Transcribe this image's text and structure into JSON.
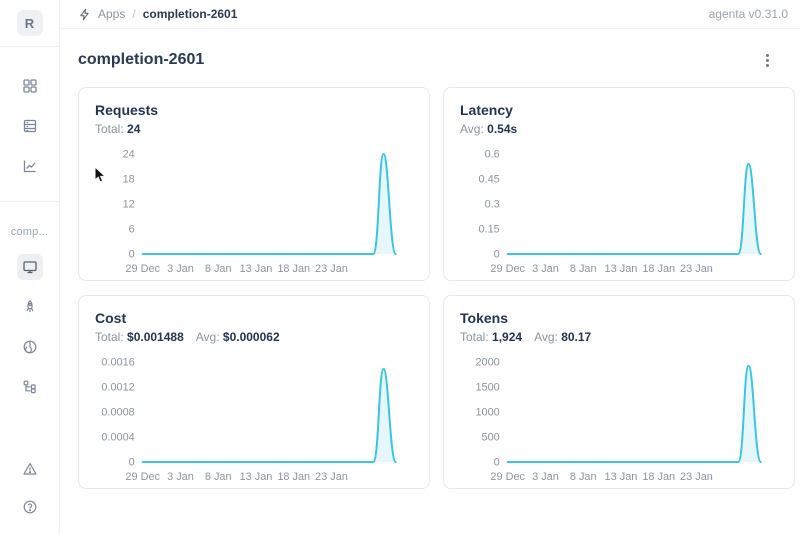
{
  "header": {
    "breadcrumb": {
      "app": "Apps",
      "separator": "/",
      "current": "completion-2601"
    },
    "version": "agenta v0.31.0"
  },
  "sidebar": {
    "workspace_initial": "R",
    "app_label": "comp..."
  },
  "page": {
    "title": "completion-2601"
  },
  "theme": {
    "accent": "#3bc5df",
    "accent_fill": "rgba(59,197,223,0.13)",
    "text_dark": "#25344f",
    "text_gray": "#8b95a1",
    "card_border": "#e8e9eb"
  },
  "chart_data": [
    {
      "type": "area",
      "title": "Requests",
      "stats": [
        {
          "label": "Total:",
          "value": "24"
        }
      ],
      "x_labels": [
        "29 Dec",
        "3 Jan",
        "8 Jan",
        "13 Jan",
        "18 Jan",
        "23 Jan"
      ],
      "y_ticks": [
        "0",
        "6",
        "12",
        "18",
        "24"
      ],
      "y_max": 24,
      "peak_value": 24,
      "series": [
        {
          "name": "Requests",
          "points": [
            {
              "x": "29 Dec – 25 Jan",
              "y": 0
            },
            {
              "x": "~26 Jan",
              "y": 24
            },
            {
              "x": "27 Jan",
              "y": 0
            }
          ]
        }
      ],
      "xlabel": "",
      "ylabel": "",
      "grid": false,
      "legend": false
    },
    {
      "type": "area",
      "title": "Latency",
      "stats": [
        {
          "label": "Avg:",
          "value": "0.54s"
        }
      ],
      "x_labels": [
        "29 Dec",
        "3 Jan",
        "8 Jan",
        "13 Jan",
        "18 Jan",
        "23 Jan"
      ],
      "y_ticks": [
        "0",
        "0.15",
        "0.3",
        "0.45",
        "0.6"
      ],
      "y_max": 0.6,
      "peak_value": 0.54,
      "series": [
        {
          "name": "Latency (s)",
          "points": [
            {
              "x": "29 Dec – 25 Jan",
              "y": 0
            },
            {
              "x": "~26 Jan",
              "y": 0.54
            },
            {
              "x": "27 Jan",
              "y": 0
            }
          ]
        }
      ],
      "xlabel": "",
      "ylabel": "",
      "grid": false,
      "legend": false
    },
    {
      "type": "area",
      "title": "Cost",
      "stats": [
        {
          "label": "Total:",
          "value": "$0.001488"
        },
        {
          "label": "Avg:",
          "value": "$0.000062"
        }
      ],
      "x_labels": [
        "29 Dec",
        "3 Jan",
        "8 Jan",
        "13 Jan",
        "18 Jan",
        "23 Jan"
      ],
      "y_ticks": [
        "0",
        "0.0004",
        "0.0008",
        "0.0012",
        "0.0016"
      ],
      "y_max": 0.0016,
      "peak_value": 0.001488,
      "series": [
        {
          "name": "Cost ($)",
          "points": [
            {
              "x": "29 Dec – 25 Jan",
              "y": 0
            },
            {
              "x": "~26 Jan",
              "y": 0.001488
            },
            {
              "x": "27 Jan",
              "y": 0
            }
          ]
        }
      ],
      "xlabel": "",
      "ylabel": "",
      "grid": false,
      "legend": false
    },
    {
      "type": "area",
      "title": "Tokens",
      "stats": [
        {
          "label": "Total:",
          "value": "1,924"
        },
        {
          "label": "Avg:",
          "value": "80.17"
        }
      ],
      "x_labels": [
        "29 Dec",
        "3 Jan",
        "8 Jan",
        "13 Jan",
        "18 Jan",
        "23 Jan"
      ],
      "y_ticks": [
        "0",
        "500",
        "1000",
        "1500",
        "2000"
      ],
      "y_max": 2000,
      "peak_value": 1924,
      "series": [
        {
          "name": "Tokens",
          "points": [
            {
              "x": "29 Dec – 25 Jan",
              "y": 0
            },
            {
              "x": "~26 Jan",
              "y": 1924
            },
            {
              "x": "27 Jan",
              "y": 0
            }
          ]
        }
      ],
      "xlabel": "",
      "ylabel": "",
      "grid": false,
      "legend": false
    }
  ]
}
